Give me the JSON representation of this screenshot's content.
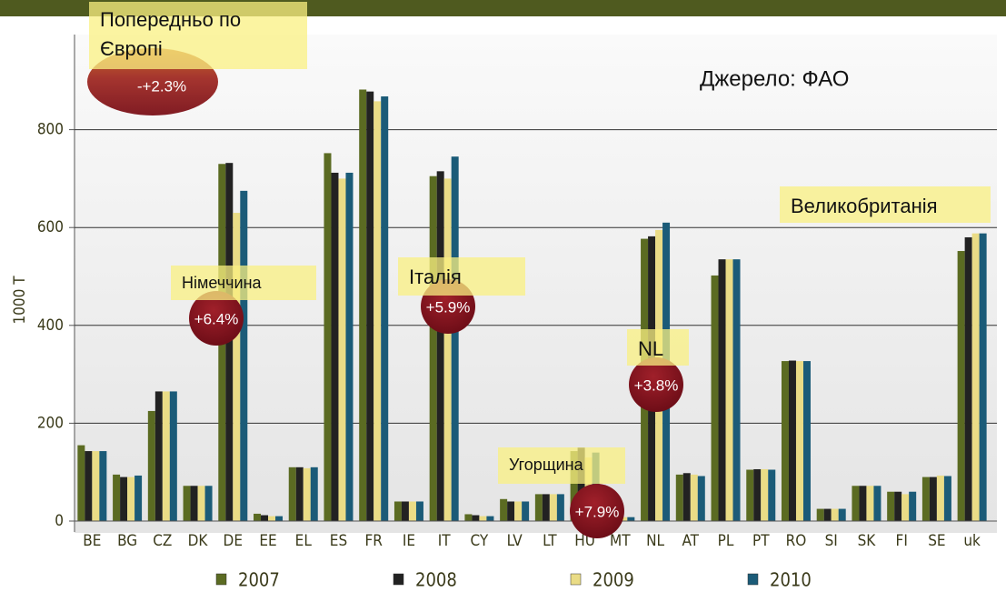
{
  "chart_data": {
    "type": "bar",
    "y_label": "1000 T",
    "categories": [
      "BE",
      "BG",
      "CZ",
      "DK",
      "DE",
      "EE",
      "EL",
      "ES",
      "FR",
      "IE",
      "IT",
      "CY",
      "LV",
      "LT",
      "HU",
      "MT",
      "NL",
      "AT",
      "PL",
      "PT",
      "RO",
      "SI",
      "SK",
      "FI",
      "SE",
      "uk"
    ],
    "series": [
      {
        "name": "2007",
        "color": "#5b6b22",
        "values": [
          155,
          95,
          225,
          72,
          730,
          15,
          110,
          752,
          882,
          40,
          705,
          14,
          45,
          55,
          143,
          8,
          577,
          95,
          502,
          105,
          327,
          25,
          72,
          60,
          90,
          552
        ]
      },
      {
        "name": "2008",
        "color": "#222222",
        "values": [
          143,
          90,
          265,
          72,
          732,
          12,
          110,
          712,
          878,
          40,
          715,
          12,
          40,
          55,
          150,
          8,
          582,
          98,
          535,
          106,
          328,
          25,
          72,
          60,
          90,
          580
        ]
      },
      {
        "name": "2009",
        "color": "#eadc86",
        "values": [
          143,
          90,
          265,
          72,
          630,
          10,
          108,
          700,
          858,
          40,
          700,
          10,
          40,
          55,
          130,
          8,
          595,
          95,
          535,
          106,
          327,
          25,
          72,
          55,
          93,
          588
        ]
      },
      {
        "name": "2010",
        "color": "#1b5b78",
        "values": [
          143,
          93,
          265,
          72,
          675,
          10,
          110,
          712,
          868,
          40,
          745,
          10,
          40,
          55,
          140,
          8,
          610,
          92,
          535,
          105,
          327,
          25,
          72,
          60,
          92,
          588
        ]
      }
    ],
    "ylim": [
      0,
      1000
    ],
    "yticks": [
      0,
      200,
      400,
      600,
      800
    ],
    "grid": true,
    "annotations": [
      "Попередньо по Європі",
      "-+2.3%",
      "Джерело: ФАО",
      "Великобританія",
      "Німеччина",
      "+6.4%",
      "Італія",
      "+5.9%",
      "NL",
      "+3.8%",
      "Угорщина",
      "+7.9%"
    ]
  }
}
